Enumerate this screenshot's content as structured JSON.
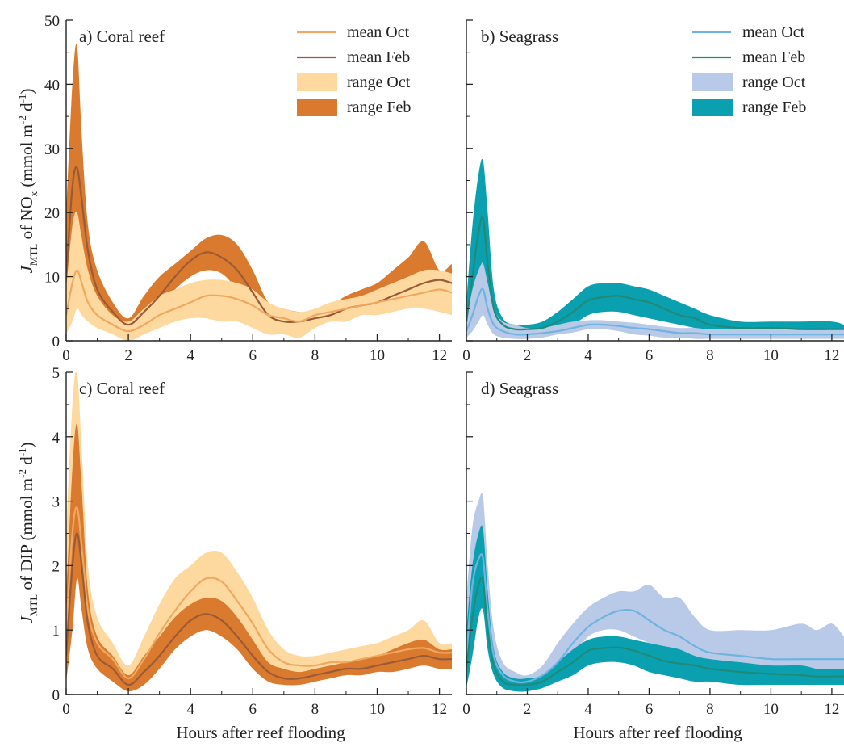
{
  "figure": {
    "xlabel": "Hours after reef flooding",
    "ylabel_top": {
      "main": "J",
      "sub1": "MTL",
      "mid": " of NO",
      "sub2": "x",
      "unit": " (mmol m",
      "sup1": "-2",
      "unit2": " d",
      "sup2": "-1",
      "close": ")"
    },
    "ylabel_bottom": {
      "main": "J",
      "sub1": "MTL",
      "mid": " of DIP (mmol m",
      "sup1": "-2",
      "unit2": " d",
      "sup2": "-1",
      "close": ")"
    }
  },
  "colors": {
    "coral_mean_oct": "#f0a860",
    "coral_mean_feb": "#9a5a38",
    "coral_range_oct": "#fdd9a0",
    "coral_range_feb": "#d97a2e",
    "sea_mean_oct": "#6fb3e0",
    "sea_mean_feb": "#1f8a78",
    "sea_range_oct": "#b9c9e8",
    "sea_range_feb": "#0aa0b0"
  },
  "chart_data": [
    {
      "type": "area",
      "panel": "a",
      "label": "a) Coral reef",
      "xlim": [
        0,
        12.4
      ],
      "ylim": [
        0,
        50
      ],
      "xticks": [
        0,
        2,
        4,
        6,
        8,
        10,
        12
      ],
      "yticks": [
        0,
        10,
        20,
        30,
        40,
        50
      ],
      "legend": [
        "mean Oct",
        "mean Feb",
        "range Oct",
        "range Feb"
      ],
      "legend_position": "top-right",
      "x": [
        0,
        0.2,
        0.35,
        0.5,
        0.7,
        1.0,
        1.5,
        2.0,
        2.5,
        3.0,
        3.5,
        4.0,
        4.5,
        5.0,
        5.5,
        6.0,
        6.5,
        7.0,
        7.5,
        8.0,
        8.5,
        9.0,
        9.5,
        10.0,
        10.5,
        11.0,
        11.5,
        12.0,
        12.4
      ],
      "series": [
        {
          "name": "range Feb",
          "low": [
            5,
            14,
            18,
            16,
            9,
            5,
            3,
            1.5,
            3,
            5,
            8,
            10,
            11,
            10.5,
            8,
            5,
            3,
            2.5,
            2.5,
            3,
            3.5,
            4,
            4.5,
            5,
            5.5,
            6,
            7,
            7.5,
            7
          ],
          "high": [
            20,
            40,
            46,
            32,
            18,
            11,
            6,
            3.5,
            7,
            10,
            12,
            14,
            16,
            16.5,
            15,
            11,
            6,
            5,
            4.5,
            4.5,
            5.5,
            7,
            8,
            9,
            11,
            13,
            15.5,
            11,
            12
          ]
        },
        {
          "name": "range Oct",
          "low": [
            1,
            3,
            5,
            4,
            3,
            2,
            1,
            0,
            1,
            2,
            3,
            3.5,
            3.5,
            3,
            3,
            2,
            1,
            1,
            0.5,
            2,
            3,
            3,
            4,
            4,
            4.5,
            5,
            5,
            4.5,
            4
          ]
        },
        {
          "name": "mean Feb",
          "values": [
            10,
            24,
            27,
            22,
            14,
            8,
            4.5,
            2.5,
            4.5,
            7,
            10,
            12.5,
            13.8,
            13,
            11,
            7.5,
            4,
            3,
            3,
            3.5,
            4,
            5,
            5.5,
            6,
            7,
            8,
            9,
            9.5,
            9
          ]
        },
        {
          "name": "mean Oct",
          "values": [
            4,
            9,
            11,
            9,
            6,
            4,
            2.5,
            1.5,
            2.5,
            4,
            5,
            6,
            7,
            7,
            6.5,
            5.5,
            4,
            3.5,
            3,
            4,
            4.5,
            5,
            5.5,
            6,
            6.5,
            7,
            7.5,
            8,
            7.5
          ]
        }
      ],
      "range_oct_high": [
        8,
        18,
        20,
        16,
        11,
        7,
        4,
        3,
        5,
        7,
        8,
        9,
        9.5,
        9.5,
        9,
        8,
        6,
        5,
        4.5,
        5,
        6,
        6.5,
        7,
        8,
        9,
        10,
        11,
        11,
        10.5
      ]
    },
    {
      "type": "area",
      "panel": "b",
      "label": "b) Seagrass",
      "xlim": [
        0,
        12.4
      ],
      "ylim": [
        0,
        50
      ],
      "xticks": [
        0,
        2,
        4,
        6,
        8,
        10,
        12
      ],
      "yticks": [
        0,
        10,
        20,
        30,
        40,
        50
      ],
      "legend": [
        "mean Oct",
        "mean Feb",
        "range Oct",
        "range Feb"
      ],
      "legend_position": "top-right",
      "x": [
        0,
        0.2,
        0.4,
        0.55,
        0.7,
        0.9,
        1.2,
        1.6,
        2.0,
        2.5,
        3.0,
        3.5,
        4.0,
        4.5,
        5.0,
        5.5,
        6.0,
        6.5,
        7.0,
        7.5,
        8.0,
        9.0,
        10.0,
        11.0,
        12.0,
        12.4
      ],
      "series": [
        {
          "name": "range Feb",
          "low": [
            1,
            5,
            10,
            12,
            6,
            2,
            1,
            0.8,
            0.8,
            1,
            1.5,
            2.5,
            4,
            4.5,
            4.5,
            4,
            3.5,
            3,
            2.5,
            2,
            1.5,
            1,
            1,
            1,
            1,
            0.8
          ],
          "high": [
            6,
            18,
            26,
            28,
            20,
            8,
            3.5,
            2.5,
            2.5,
            3,
            4.5,
            6.5,
            8.5,
            9,
            9,
            8.5,
            8,
            7,
            6,
            5,
            4,
            3,
            3,
            3,
            3,
            2.5
          ]
        },
        {
          "name": "range Oct",
          "low": [
            0.5,
            1.5,
            3,
            4,
            2.5,
            1,
            0.5,
            0.3,
            0.3,
            0.5,
            1,
            1.3,
            1.8,
            1.8,
            1.5,
            1,
            0.8,
            0.5,
            0.5,
            0.3,
            0.3,
            0.3,
            0.3,
            0.3,
            0.3,
            0.3
          ],
          "high": [
            3,
            8,
            11,
            12,
            9,
            5,
            3,
            2.5,
            2,
            2,
            2.5,
            3,
            3.2,
            3.2,
            3,
            2.8,
            2.5,
            2.2,
            2,
            2,
            1.8,
            1.8,
            1.8,
            1.8,
            1.8,
            1.8
          ]
        },
        {
          "name": "mean Feb",
          "values": [
            3,
            10,
            17,
            19,
            12,
            5,
            2.5,
            1.8,
            1.8,
            2,
            3,
            4.5,
            6.3,
            6.8,
            7,
            6.5,
            6,
            5,
            4,
            3.5,
            2.5,
            2,
            2,
            1.8,
            1.8,
            1.8
          ]
        },
        {
          "name": "mean Oct",
          "values": [
            1.5,
            4,
            7,
            8,
            5,
            2.5,
            1.5,
            1,
            1,
            1.2,
            1.5,
            2,
            2.5,
            2.5,
            2.3,
            2,
            1.8,
            1.5,
            1.2,
            1.2,
            1,
            1,
            1,
            1,
            1,
            1
          ]
        }
      ]
    },
    {
      "type": "area",
      "panel": "c",
      "label": "c) Coral reef",
      "xlim": [
        0,
        12.4
      ],
      "ylim": [
        0,
        5
      ],
      "xticks": [
        0,
        2,
        4,
        6,
        8,
        10,
        12
      ],
      "yticks": [
        0,
        1,
        2,
        3,
        4,
        5
      ],
      "x": [
        0,
        0.2,
        0.35,
        0.5,
        0.7,
        1.0,
        1.5,
        2.0,
        2.5,
        3.0,
        3.5,
        4.0,
        4.5,
        5.0,
        5.5,
        6.0,
        6.5,
        7.0,
        7.5,
        8.0,
        8.5,
        9.0,
        9.5,
        10.0,
        10.5,
        11.0,
        11.5,
        12.0,
        12.4
      ],
      "series": [
        {
          "name": "range Oct",
          "low": [
            0.4,
            1.5,
            2.2,
            1.8,
            1.0,
            0.6,
            0.4,
            0.15,
            0.3,
            0.6,
            0.9,
            1.1,
            1.3,
            1.3,
            1.1,
            0.8,
            0.5,
            0.35,
            0.3,
            0.3,
            0.35,
            0.35,
            0.4,
            0.4,
            0.45,
            0.5,
            0.55,
            0.5,
            0.5
          ],
          "high": [
            2.5,
            4.5,
            5.0,
            3.8,
            2.0,
            1.2,
            0.8,
            0.45,
            0.9,
            1.4,
            1.8,
            2.0,
            2.2,
            2.2,
            1.9,
            1.5,
            1.0,
            0.7,
            0.6,
            0.6,
            0.65,
            0.7,
            0.75,
            0.8,
            0.9,
            1.0,
            1.15,
            0.8,
            0.8
          ]
        },
        {
          "name": "range Feb",
          "low": [
            0.2,
            1.0,
            1.8,
            1.3,
            0.7,
            0.4,
            0.2,
            0.05,
            0.15,
            0.4,
            0.7,
            0.9,
            1.0,
            0.9,
            0.7,
            0.4,
            0.2,
            0.15,
            0.15,
            0.2,
            0.25,
            0.3,
            0.3,
            0.35,
            0.35,
            0.4,
            0.45,
            0.4,
            0.4
          ],
          "high": [
            1.5,
            3.5,
            4.2,
            3.2,
            1.6,
            0.9,
            0.6,
            0.3,
            0.6,
            0.9,
            1.2,
            1.4,
            1.5,
            1.45,
            1.2,
            0.85,
            0.5,
            0.4,
            0.35,
            0.4,
            0.45,
            0.5,
            0.55,
            0.6,
            0.7,
            0.8,
            0.85,
            0.7,
            0.7
          ]
        },
        {
          "name": "mean Oct",
          "values": [
            1.0,
            2.5,
            2.9,
            2.3,
            1.3,
            0.8,
            0.55,
            0.25,
            0.55,
            0.95,
            1.3,
            1.6,
            1.8,
            1.75,
            1.45,
            1.1,
            0.7,
            0.5,
            0.45,
            0.45,
            0.5,
            0.5,
            0.55,
            0.6,
            0.65,
            0.7,
            0.72,
            0.65,
            0.65
          ]
        },
        {
          "name": "mean Feb",
          "values": [
            0.6,
            2.0,
            2.5,
            2.0,
            1.1,
            0.6,
            0.4,
            0.15,
            0.35,
            0.6,
            0.9,
            1.15,
            1.25,
            1.15,
            0.9,
            0.6,
            0.35,
            0.25,
            0.25,
            0.3,
            0.35,
            0.4,
            0.4,
            0.45,
            0.5,
            0.55,
            0.6,
            0.55,
            0.55
          ]
        }
      ]
    },
    {
      "type": "area",
      "panel": "d",
      "label": "d) Seagrass",
      "xlim": [
        0,
        12.4
      ],
      "ylim": [
        0,
        5
      ],
      "xticks": [
        0,
        2,
        4,
        6,
        8,
        10,
        12
      ],
      "yticks": [
        0,
        1,
        2,
        3,
        4,
        5
      ],
      "x": [
        0,
        0.2,
        0.4,
        0.55,
        0.7,
        0.9,
        1.2,
        1.6,
        2.0,
        2.5,
        3.0,
        3.5,
        4.0,
        4.5,
        5.0,
        5.5,
        6.0,
        6.5,
        7.0,
        7.5,
        8.0,
        9.0,
        10.0,
        11.0,
        11.5,
        12.0,
        12.4
      ],
      "series": [
        {
          "name": "range Oct",
          "low": [
            0.2,
            0.8,
            1.5,
            1.8,
            1.0,
            0.5,
            0.2,
            0.1,
            0.1,
            0.2,
            0.4,
            0.6,
            0.9,
            1.0,
            1.0,
            0.9,
            0.8,
            0.7,
            0.6,
            0.5,
            0.4,
            0.3,
            0.3,
            0.3,
            0.3,
            0.3,
            0.3
          ],
          "high": [
            1.5,
            2.6,
            3.0,
            3.05,
            2.0,
            1.0,
            0.5,
            0.35,
            0.3,
            0.45,
            0.8,
            1.1,
            1.35,
            1.5,
            1.6,
            1.6,
            1.7,
            1.5,
            1.5,
            1.2,
            1.0,
            1.0,
            1.0,
            1.1,
            1.0,
            1.1,
            0.9
          ]
        },
        {
          "name": "range Feb",
          "low": [
            0.1,
            0.6,
            1.2,
            1.3,
            0.7,
            0.3,
            0.1,
            0.05,
            0.05,
            0.1,
            0.2,
            0.3,
            0.45,
            0.5,
            0.5,
            0.45,
            0.35,
            0.3,
            0.25,
            0.2,
            0.2,
            0.15,
            0.15,
            0.15,
            0.15,
            0.15,
            0.15
          ],
          "high": [
            1.0,
            2.0,
            2.5,
            2.55,
            1.6,
            0.7,
            0.35,
            0.25,
            0.25,
            0.3,
            0.5,
            0.7,
            0.85,
            0.9,
            0.9,
            0.85,
            0.8,
            0.75,
            0.7,
            0.6,
            0.55,
            0.5,
            0.45,
            0.45,
            0.4,
            0.4,
            0.4
          ]
        },
        {
          "name": "mean Oct",
          "values": [
            0.6,
            1.7,
            2.1,
            2.1,
            1.3,
            0.6,
            0.3,
            0.2,
            0.2,
            0.3,
            0.5,
            0.8,
            1.05,
            1.2,
            1.3,
            1.3,
            1.15,
            1.0,
            0.9,
            0.75,
            0.65,
            0.6,
            0.55,
            0.55,
            0.55,
            0.55,
            0.55
          ]
        },
        {
          "name": "mean Feb",
          "values": [
            0.4,
            1.2,
            1.7,
            1.75,
            1.0,
            0.45,
            0.2,
            0.15,
            0.15,
            0.2,
            0.35,
            0.5,
            0.68,
            0.72,
            0.73,
            0.68,
            0.6,
            0.52,
            0.48,
            0.45,
            0.4,
            0.35,
            0.32,
            0.3,
            0.28,
            0.28,
            0.28
          ]
        }
      ]
    }
  ]
}
